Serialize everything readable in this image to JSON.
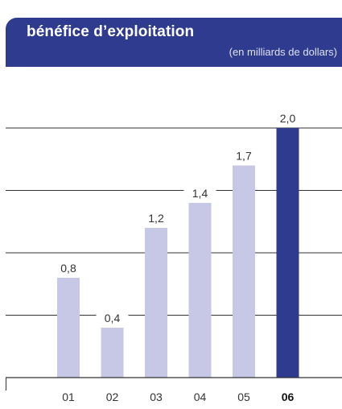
{
  "chart_data": {
    "type": "bar",
    "title": "bénéfice d’exploitation",
    "subtitle": "(en milliards de dollars)",
    "categories": [
      "01",
      "02",
      "03",
      "04",
      "05",
      "06"
    ],
    "values": [
      0.8,
      0.4,
      1.2,
      1.4,
      1.7,
      2.0
    ],
    "value_labels": [
      "0,8",
      "0,4",
      "1,2",
      "1,4",
      "1,7",
      "2,0"
    ],
    "highlight_index": 5,
    "ylim": [
      0,
      2.0
    ],
    "grid": true,
    "colors": {
      "bar": "#c7c8e5",
      "highlight": "#2e3b8f",
      "header": "#2e3b8f",
      "grid": "#333333",
      "text": "#333333"
    }
  }
}
